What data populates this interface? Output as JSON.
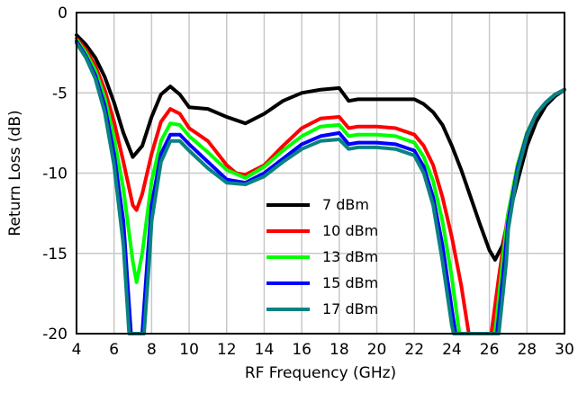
{
  "chart_data": {
    "type": "line",
    "title": "",
    "xlabel": "RF Frequency (GHz)",
    "ylabel": "Return Loss (dB)",
    "xlim": [
      4,
      30
    ],
    "ylim": [
      -20,
      0
    ],
    "xticks": [
      4,
      6,
      8,
      10,
      12,
      14,
      16,
      18,
      20,
      22,
      24,
      26,
      28,
      30
    ],
    "yticks": [
      0,
      -5,
      -10,
      -15,
      -20
    ],
    "grid": true,
    "legend_position": "center",
    "series": [
      {
        "name": "7 dBm",
        "color": "#000000",
        "points": [
          [
            4,
            -1.4
          ],
          [
            4.5,
            -2.0
          ],
          [
            5,
            -2.8
          ],
          [
            5.5,
            -4.0
          ],
          [
            6,
            -5.6
          ],
          [
            6.5,
            -7.5
          ],
          [
            7,
            -9.0
          ],
          [
            7.5,
            -8.3
          ],
          [
            8,
            -6.5
          ],
          [
            8.5,
            -5.1
          ],
          [
            9,
            -4.6
          ],
          [
            9.5,
            -5.1
          ],
          [
            10,
            -5.9
          ],
          [
            11,
            -6.0
          ],
          [
            12,
            -6.5
          ],
          [
            13,
            -6.9
          ],
          [
            14,
            -6.3
          ],
          [
            15,
            -5.5
          ],
          [
            16,
            -5.0
          ],
          [
            17,
            -4.8
          ],
          [
            18,
            -4.7
          ],
          [
            18.5,
            -5.5
          ],
          [
            19,
            -5.4
          ],
          [
            20,
            -5.4
          ],
          [
            21,
            -5.4
          ],
          [
            22,
            -5.4
          ],
          [
            22.5,
            -5.7
          ],
          [
            23,
            -6.2
          ],
          [
            23.5,
            -7.0
          ],
          [
            24,
            -8.3
          ],
          [
            24.5,
            -9.8
          ],
          [
            25,
            -11.5
          ],
          [
            25.5,
            -13.2
          ],
          [
            26,
            -14.8
          ],
          [
            26.3,
            -15.4
          ],
          [
            26.7,
            -14.5
          ],
          [
            27,
            -12.8
          ],
          [
            27.5,
            -10.5
          ],
          [
            28,
            -8.3
          ],
          [
            28.5,
            -6.8
          ],
          [
            29,
            -5.8
          ],
          [
            29.5,
            -5.2
          ],
          [
            30,
            -4.8
          ]
        ]
      },
      {
        "name": "10 dBm",
        "color": "#ff0000",
        "points": [
          [
            4,
            -1.6
          ],
          [
            4.5,
            -2.3
          ],
          [
            5,
            -3.3
          ],
          [
            5.5,
            -4.8
          ],
          [
            6,
            -6.8
          ],
          [
            6.5,
            -9.3
          ],
          [
            7,
            -12.0
          ],
          [
            7.2,
            -12.3
          ],
          [
            7.5,
            -11.3
          ],
          [
            8,
            -8.8
          ],
          [
            8.5,
            -6.8
          ],
          [
            9,
            -6.0
          ],
          [
            9.5,
            -6.3
          ],
          [
            10,
            -7.2
          ],
          [
            11,
            -8.0
          ],
          [
            12,
            -9.5
          ],
          [
            12.5,
            -10.0
          ],
          [
            13,
            -10.1
          ],
          [
            14,
            -9.5
          ],
          [
            15,
            -8.3
          ],
          [
            16,
            -7.2
          ],
          [
            17,
            -6.6
          ],
          [
            18,
            -6.5
          ],
          [
            18.5,
            -7.2
          ],
          [
            19,
            -7.1
          ],
          [
            20,
            -7.1
          ],
          [
            21,
            -7.2
          ],
          [
            22,
            -7.6
          ],
          [
            22.5,
            -8.3
          ],
          [
            23,
            -9.5
          ],
          [
            23.5,
            -11.5
          ],
          [
            24,
            -14.0
          ],
          [
            24.5,
            -17.0
          ],
          [
            24.9,
            -20.0
          ],
          [
            26.1,
            -20.0
          ],
          [
            26.5,
            -16.5
          ],
          [
            27,
            -12.5
          ],
          [
            27.5,
            -9.5
          ],
          [
            28,
            -7.5
          ],
          [
            28.5,
            -6.3
          ],
          [
            29,
            -5.6
          ],
          [
            29.5,
            -5.1
          ],
          [
            30,
            -4.8
          ]
        ]
      },
      {
        "name": "13 dBm",
        "color": "#00ff00",
        "points": [
          [
            4,
            -1.7
          ],
          [
            4.5,
            -2.5
          ],
          [
            5,
            -3.6
          ],
          [
            5.5,
            -5.3
          ],
          [
            6,
            -7.8
          ],
          [
            6.5,
            -11.0
          ],
          [
            7,
            -15.5
          ],
          [
            7.2,
            -16.8
          ],
          [
            7.5,
            -15.0
          ],
          [
            8,
            -10.5
          ],
          [
            8.5,
            -8.0
          ],
          [
            9,
            -6.9
          ],
          [
            9.5,
            -7.0
          ],
          [
            10,
            -7.7
          ],
          [
            11,
            -8.7
          ],
          [
            12,
            -9.8
          ],
          [
            13,
            -10.3
          ],
          [
            14,
            -9.6
          ],
          [
            15,
            -8.6
          ],
          [
            16,
            -7.7
          ],
          [
            17,
            -7.1
          ],
          [
            18,
            -7.0
          ],
          [
            18.5,
            -7.7
          ],
          [
            19,
            -7.6
          ],
          [
            20,
            -7.6
          ],
          [
            21,
            -7.7
          ],
          [
            22,
            -8.1
          ],
          [
            22.5,
            -9.0
          ],
          [
            23,
            -10.5
          ],
          [
            23.5,
            -13.0
          ],
          [
            24,
            -16.5
          ],
          [
            24.4,
            -20.0
          ],
          [
            26.3,
            -20.0
          ],
          [
            26.7,
            -15.5
          ],
          [
            27,
            -12.5
          ],
          [
            27.5,
            -9.5
          ],
          [
            28,
            -7.5
          ],
          [
            28.5,
            -6.3
          ],
          [
            29,
            -5.6
          ],
          [
            29.5,
            -5.1
          ],
          [
            30,
            -4.8
          ]
        ]
      },
      {
        "name": "15 dBm",
        "color": "#0000ff",
        "points": [
          [
            4,
            -1.8
          ],
          [
            4.5,
            -2.7
          ],
          [
            5,
            -3.9
          ],
          [
            5.5,
            -5.8
          ],
          [
            6,
            -8.8
          ],
          [
            6.5,
            -13.0
          ],
          [
            6.9,
            -20.0
          ],
          [
            7.5,
            -20.0
          ],
          [
            7.8,
            -15.0
          ],
          [
            8,
            -12.0
          ],
          [
            8.5,
            -8.8
          ],
          [
            9,
            -7.6
          ],
          [
            9.5,
            -7.6
          ],
          [
            10,
            -8.2
          ],
          [
            11,
            -9.3
          ],
          [
            12,
            -10.4
          ],
          [
            13,
            -10.6
          ],
          [
            14,
            -10.0
          ],
          [
            15,
            -9.1
          ],
          [
            16,
            -8.2
          ],
          [
            17,
            -7.7
          ],
          [
            18,
            -7.5
          ],
          [
            18.5,
            -8.2
          ],
          [
            19,
            -8.1
          ],
          [
            20,
            -8.1
          ],
          [
            21,
            -8.2
          ],
          [
            22,
            -8.6
          ],
          [
            22.5,
            -9.6
          ],
          [
            23,
            -11.5
          ],
          [
            23.5,
            -14.5
          ],
          [
            24,
            -18.5
          ],
          [
            24.2,
            -20.0
          ],
          [
            26.4,
            -20.0
          ],
          [
            26.8,
            -15.5
          ],
          [
            27,
            -13.0
          ],
          [
            27.5,
            -9.7
          ],
          [
            28,
            -7.6
          ],
          [
            28.5,
            -6.3
          ],
          [
            29,
            -5.6
          ],
          [
            29.5,
            -5.1
          ],
          [
            30,
            -4.8
          ]
        ]
      },
      {
        "name": "17 dBm",
        "color": "#0a8282",
        "points": [
          [
            4,
            -1.9
          ],
          [
            4.5,
            -2.8
          ],
          [
            5,
            -4.1
          ],
          [
            5.5,
            -6.2
          ],
          [
            6,
            -9.5
          ],
          [
            6.5,
            -14.5
          ],
          [
            6.8,
            -20.0
          ],
          [
            7.6,
            -20.0
          ],
          [
            7.9,
            -15.0
          ],
          [
            8,
            -13.0
          ],
          [
            8.5,
            -9.3
          ],
          [
            9,
            -8.0
          ],
          [
            9.5,
            -8.0
          ],
          [
            10,
            -8.6
          ],
          [
            11,
            -9.7
          ],
          [
            12,
            -10.6
          ],
          [
            13,
            -10.7
          ],
          [
            14,
            -10.2
          ],
          [
            15,
            -9.3
          ],
          [
            16,
            -8.5
          ],
          [
            17,
            -8.0
          ],
          [
            18,
            -7.9
          ],
          [
            18.5,
            -8.5
          ],
          [
            19,
            -8.4
          ],
          [
            20,
            -8.4
          ],
          [
            21,
            -8.5
          ],
          [
            22,
            -8.9
          ],
          [
            22.5,
            -10.0
          ],
          [
            23,
            -12.0
          ],
          [
            23.5,
            -15.5
          ],
          [
            24,
            -19.5
          ],
          [
            24.1,
            -20.0
          ],
          [
            26.5,
            -20.0
          ],
          [
            26.9,
            -15.5
          ],
          [
            27,
            -13.5
          ],
          [
            27.5,
            -9.9
          ],
          [
            28,
            -7.7
          ],
          [
            28.5,
            -6.3
          ],
          [
            29,
            -5.6
          ],
          [
            29.5,
            -5.1
          ],
          [
            30,
            -4.8
          ]
        ]
      }
    ]
  }
}
